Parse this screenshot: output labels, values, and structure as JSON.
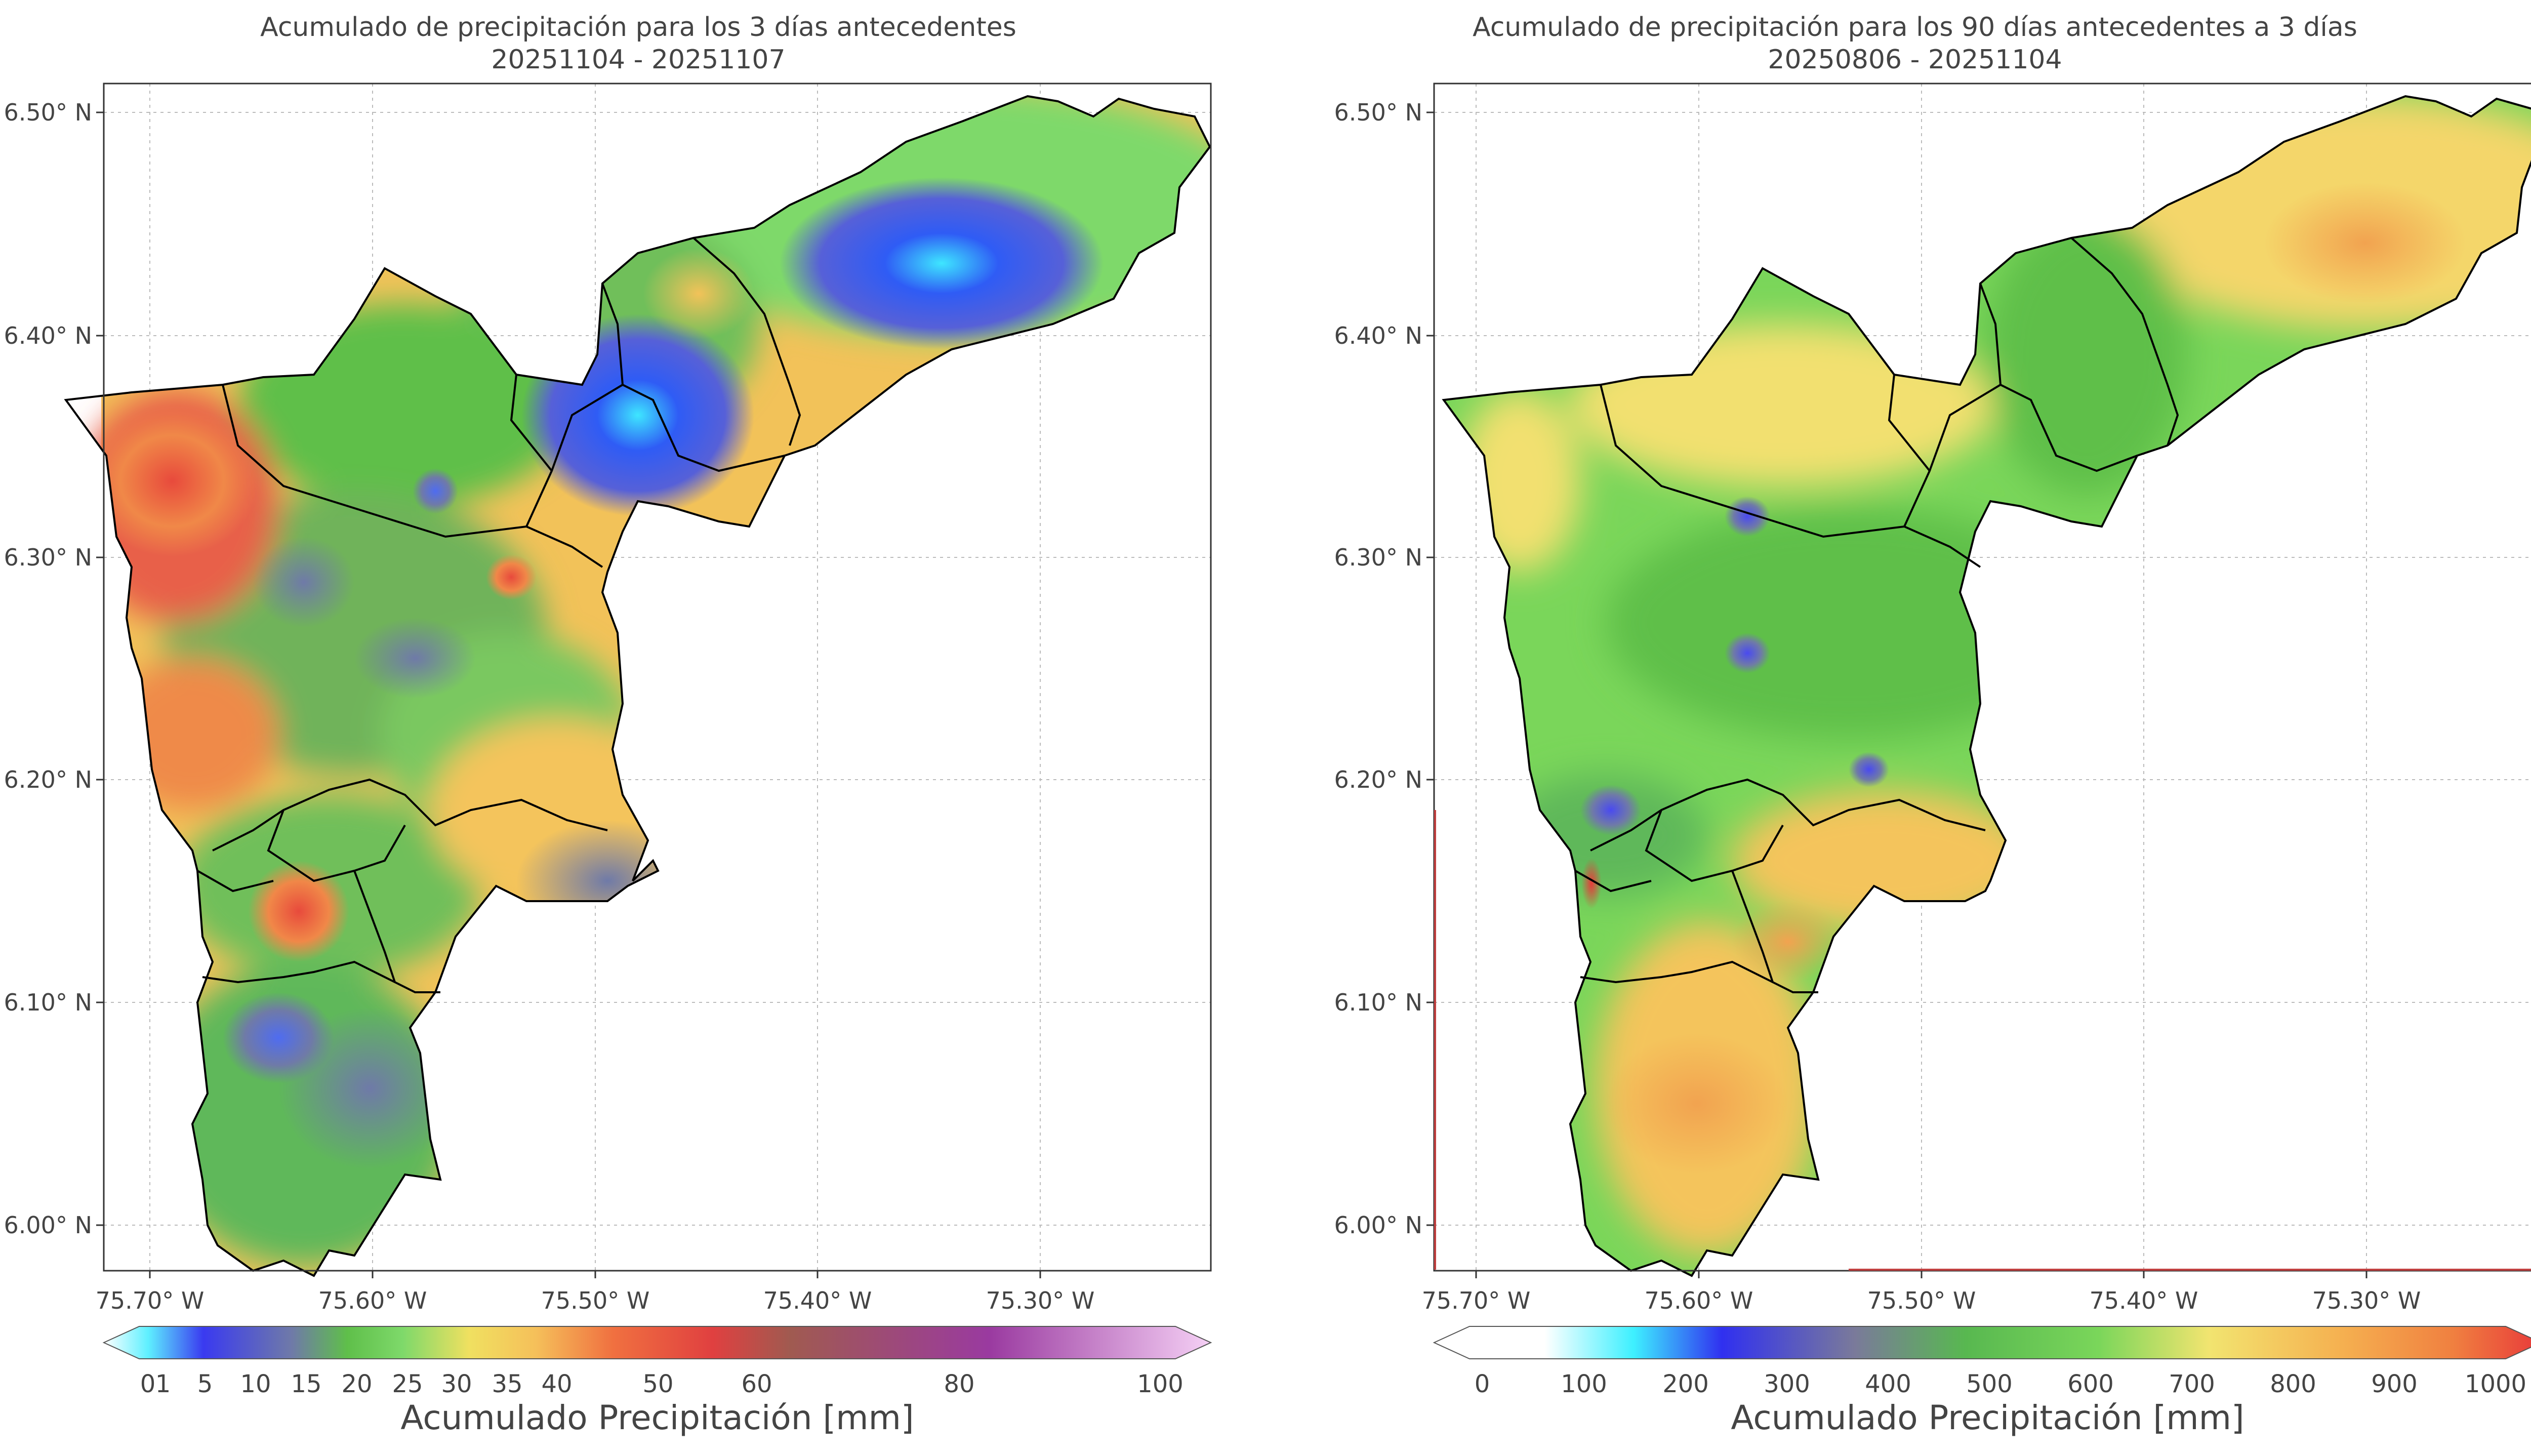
{
  "panels": [
    {
      "title_line1": "Acumulado de precipitación para los 3 días antecedentes",
      "title_line2": "20251104 - 20251107",
      "colorbar": {
        "label": "Acumulado Precipitación [mm]",
        "ticks": [
          "0",
          "1",
          "5",
          "10",
          "15",
          "20",
          "25",
          "30",
          "35",
          "40",
          "50",
          "60",
          "80",
          "100"
        ],
        "tick_values": [
          0,
          1,
          5,
          10,
          15,
          20,
          25,
          30,
          35,
          40,
          50,
          60,
          80,
          100
        ],
        "colors": [
          "#ffffff",
          "#5ef0ff",
          "#3a3af0",
          "#6f7aa8",
          "#5fbf4a",
          "#7ed96a",
          "#f0e060",
          "#f5c05a",
          "#f07040",
          "#e04040",
          "#a05a50",
          "#9a3aa0",
          "#d08ad0",
          "#f5d0f5"
        ]
      }
    },
    {
      "title_line1": "Acumulado de precipitación para los 90 días antecedentes a 3 días",
      "title_line2": "20250806 - 20251104",
      "colorbar": {
        "label": "Acumulado Precipitación [mm]",
        "ticks": [
          "0",
          "100",
          "200",
          "300",
          "400",
          "500",
          "600",
          "700",
          "800",
          "900",
          "1000"
        ],
        "tick_values": [
          0,
          100,
          200,
          300,
          400,
          500,
          600,
          700,
          800,
          900,
          1000
        ],
        "colors": [
          "#ffffff",
          "#ffffff",
          "#3ef0ff",
          "#3030f0",
          "#7a7a9a",
          "#58b850",
          "#7ad65a",
          "#f2e470",
          "#f5b050",
          "#f08040",
          "#e83a3a"
        ]
      }
    }
  ],
  "axes": {
    "x_ticks": [
      "75.70° W",
      "75.60° W",
      "75.50° W",
      "75.40° W",
      "75.30° W"
    ],
    "x_values": [
      -75.7,
      -75.6,
      -75.5,
      -75.4,
      -75.3
    ],
    "y_ticks": [
      "6.50° N",
      "6.40° N",
      "6.30° N",
      "6.20° N",
      "6.10° N",
      "6.00° N"
    ],
    "y_values": [
      6.5,
      6.4,
      6.3,
      6.2,
      6.1,
      6.0
    ],
    "xlim": [
      -75.72,
      -75.22
    ],
    "ylim": [
      5.98,
      6.51
    ],
    "grid": true
  }
}
